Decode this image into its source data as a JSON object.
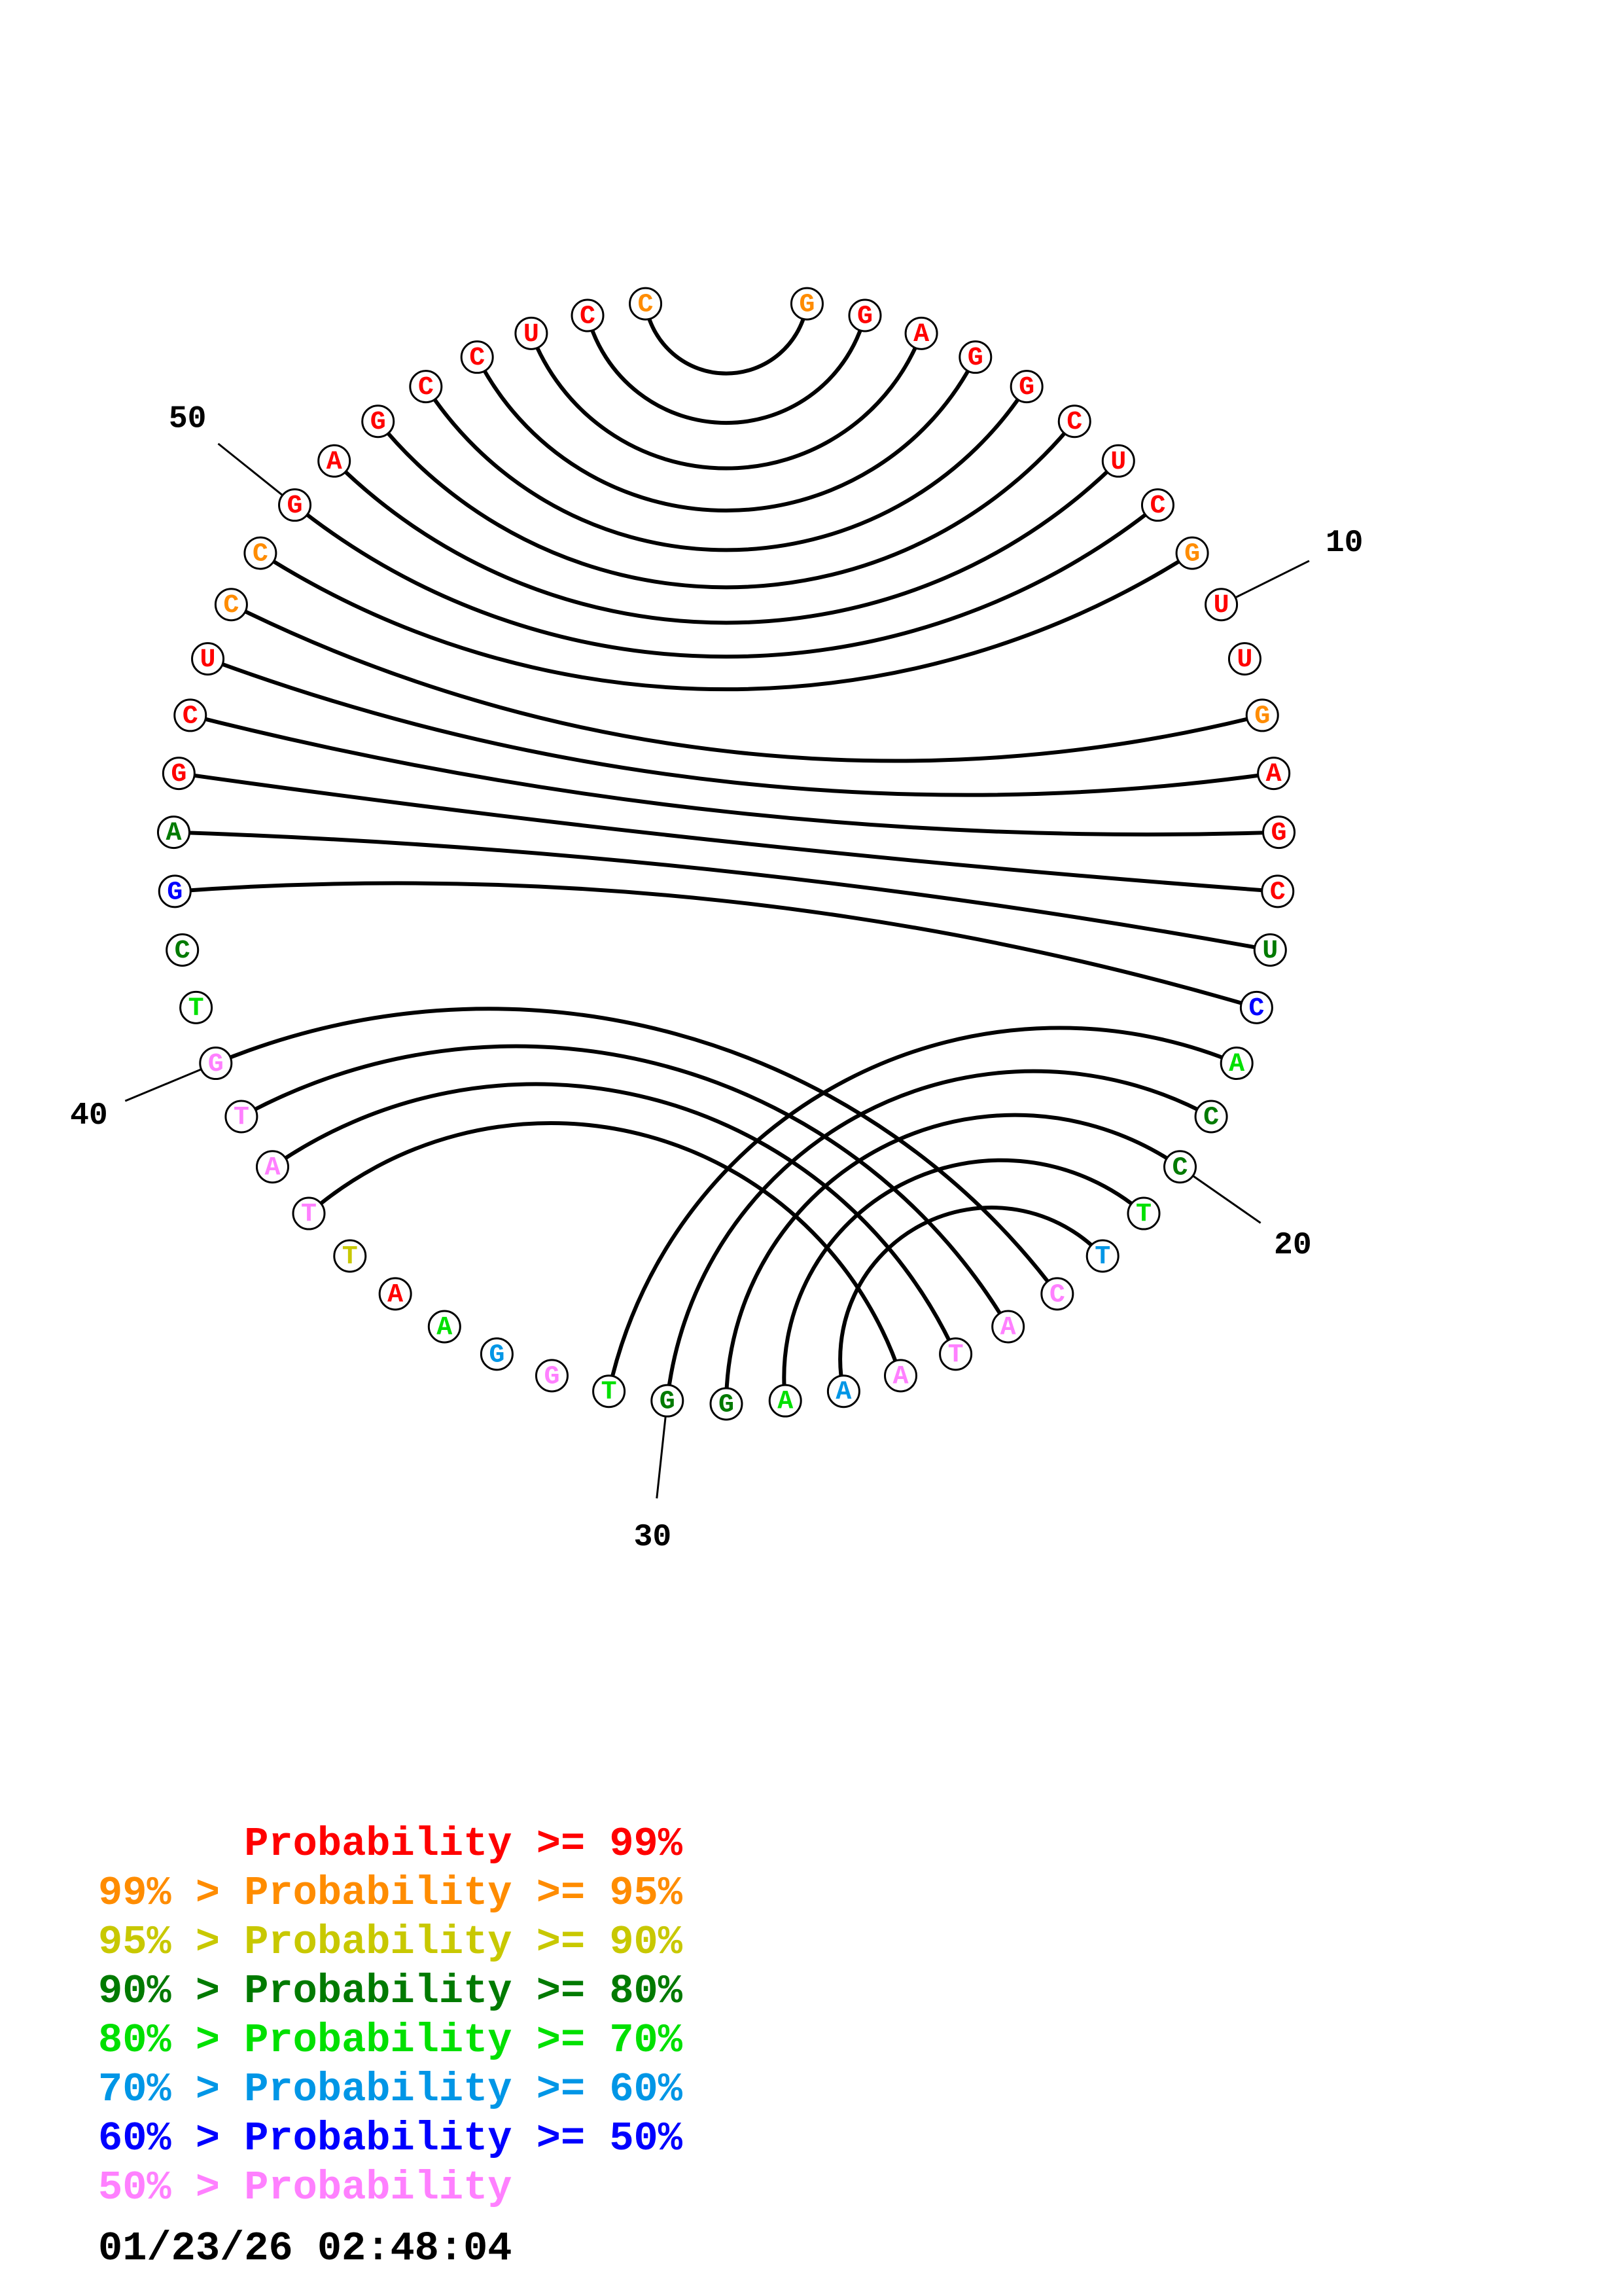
{
  "diagram": {
    "nucleotides": [
      {
        "n": 1,
        "base": "G",
        "color": "#ff8c00"
      },
      {
        "n": 2,
        "base": "G",
        "color": "#ff0000"
      },
      {
        "n": 3,
        "base": "A",
        "color": "#ff0000"
      },
      {
        "n": 4,
        "base": "G",
        "color": "#ff0000"
      },
      {
        "n": 5,
        "base": "G",
        "color": "#ff0000"
      },
      {
        "n": 6,
        "base": "C",
        "color": "#ff0000"
      },
      {
        "n": 7,
        "base": "U",
        "color": "#ff0000"
      },
      {
        "n": 8,
        "base": "C",
        "color": "#ff0000"
      },
      {
        "n": 9,
        "base": "G",
        "color": "#ff8c00"
      },
      {
        "n": 10,
        "base": "U",
        "color": "#ff0000"
      },
      {
        "n": 11,
        "base": "U",
        "color": "#ff0000"
      },
      {
        "n": 12,
        "base": "G",
        "color": "#ff8c00"
      },
      {
        "n": 13,
        "base": "A",
        "color": "#ff0000"
      },
      {
        "n": 14,
        "base": "G",
        "color": "#ff0000"
      },
      {
        "n": 15,
        "base": "C",
        "color": "#ff0000"
      },
      {
        "n": 16,
        "base": "U",
        "color": "#007a00"
      },
      {
        "n": 17,
        "base": "C",
        "color": "#0000ff"
      },
      {
        "n": 18,
        "base": "A",
        "color": "#00e000"
      },
      {
        "n": 19,
        "base": "C",
        "color": "#007a00"
      },
      {
        "n": 20,
        "base": "C",
        "color": "#007a00"
      },
      {
        "n": 21,
        "base": "T",
        "color": "#00e000"
      },
      {
        "n": 22,
        "base": "T",
        "color": "#0096e6"
      },
      {
        "n": 23,
        "base": "C",
        "color": "#ff80ff"
      },
      {
        "n": 24,
        "base": "A",
        "color": "#ff80ff"
      },
      {
        "n": 25,
        "base": "T",
        "color": "#ff80ff"
      },
      {
        "n": 26,
        "base": "A",
        "color": "#ff80ff"
      },
      {
        "n": 27,
        "base": "A",
        "color": "#0096e6"
      },
      {
        "n": 28,
        "base": "A",
        "color": "#00e000"
      },
      {
        "n": 29,
        "base": "G",
        "color": "#007a00"
      },
      {
        "n": 30,
        "base": "G",
        "color": "#007a00"
      },
      {
        "n": 31,
        "base": "T",
        "color": "#00e000"
      },
      {
        "n": 32,
        "base": "G",
        "color": "#ff80ff"
      },
      {
        "n": 33,
        "base": "G",
        "color": "#0096e6"
      },
      {
        "n": 34,
        "base": "A",
        "color": "#00e000"
      },
      {
        "n": 35,
        "base": "A",
        "color": "#ff0000"
      },
      {
        "n": 36,
        "base": "T",
        "color": "#c8c800"
      },
      {
        "n": 37,
        "base": "T",
        "color": "#ff80ff"
      },
      {
        "n": 38,
        "base": "A",
        "color": "#ff80ff"
      },
      {
        "n": 39,
        "base": "T",
        "color": "#ff80ff"
      },
      {
        "n": 40,
        "base": "G",
        "color": "#ff80ff"
      },
      {
        "n": 41,
        "base": "T",
        "color": "#00e000"
      },
      {
        "n": 42,
        "base": "C",
        "color": "#007a00"
      },
      {
        "n": 43,
        "base": "G",
        "color": "#0000ff"
      },
      {
        "n": 44,
        "base": "A",
        "color": "#007a00"
      },
      {
        "n": 45,
        "base": "G",
        "color": "#ff0000"
      },
      {
        "n": 46,
        "base": "C",
        "color": "#ff0000"
      },
      {
        "n": 47,
        "base": "U",
        "color": "#ff0000"
      },
      {
        "n": 48,
        "base": "C",
        "color": "#ff8c00"
      },
      {
        "n": 49,
        "base": "C",
        "color": "#ff8c00"
      },
      {
        "n": 50,
        "base": "G",
        "color": "#ff0000"
      },
      {
        "n": 51,
        "base": "A",
        "color": "#ff0000"
      },
      {
        "n": 52,
        "base": "G",
        "color": "#ff0000"
      },
      {
        "n": 53,
        "base": "C",
        "color": "#ff0000"
      },
      {
        "n": 54,
        "base": "C",
        "color": "#ff0000"
      },
      {
        "n": 55,
        "base": "U",
        "color": "#ff0000"
      },
      {
        "n": 56,
        "base": "C",
        "color": "#ff0000"
      },
      {
        "n": 57,
        "base": "C",
        "color": "#ff8c00"
      }
    ],
    "pairs": [
      [
        1,
        57
      ],
      [
        2,
        56
      ],
      [
        3,
        55
      ],
      [
        4,
        54
      ],
      [
        5,
        53
      ],
      [
        6,
        52
      ],
      [
        7,
        51
      ],
      [
        8,
        50
      ],
      [
        9,
        49
      ],
      [
        12,
        48
      ],
      [
        13,
        47
      ],
      [
        14,
        46
      ],
      [
        15,
        45
      ],
      [
        16,
        44
      ],
      [
        17,
        43
      ],
      [
        18,
        31
      ],
      [
        19,
        30
      ],
      [
        20,
        29
      ],
      [
        21,
        28
      ],
      [
        22,
        27
      ],
      [
        23,
        40
      ],
      [
        24,
        39
      ],
      [
        25,
        38
      ],
      [
        26,
        37
      ]
    ],
    "index_labels": [
      {
        "n": 10,
        "text": "10"
      },
      {
        "n": 20,
        "text": "20"
      },
      {
        "n": 30,
        "text": "30"
      },
      {
        "n": 40,
        "text": "40"
      },
      {
        "n": 50,
        "text": "50"
      }
    ]
  },
  "legend": [
    {
      "prefix": "",
      "label": "Probability",
      "suffix": ">= 99%",
      "color": "#ff0000"
    },
    {
      "prefix": "99% >",
      "label": "Probability",
      "suffix": ">= 95%",
      "color": "#ff8c00"
    },
    {
      "prefix": "95% >",
      "label": "Probability",
      "suffix": ">= 90%",
      "color": "#c8c800"
    },
    {
      "prefix": "90% >",
      "label": "Probability",
      "suffix": ">= 80%",
      "color": "#007a00"
    },
    {
      "prefix": "80% >",
      "label": "Probability",
      "suffix": ">= 70%",
      "color": "#00e000"
    },
    {
      "prefix": "70% >",
      "label": "Probability",
      "suffix": ">= 60%",
      "color": "#0096e6"
    },
    {
      "prefix": "60% >",
      "label": "Probability",
      "suffix": ">= 50%",
      "color": "#0000ff"
    },
    {
      "prefix": "50% >",
      "label": "Probability",
      "suffix": "",
      "color": "#ff80ff"
    }
  ],
  "timestamp": "01/23/26 02:48:04"
}
